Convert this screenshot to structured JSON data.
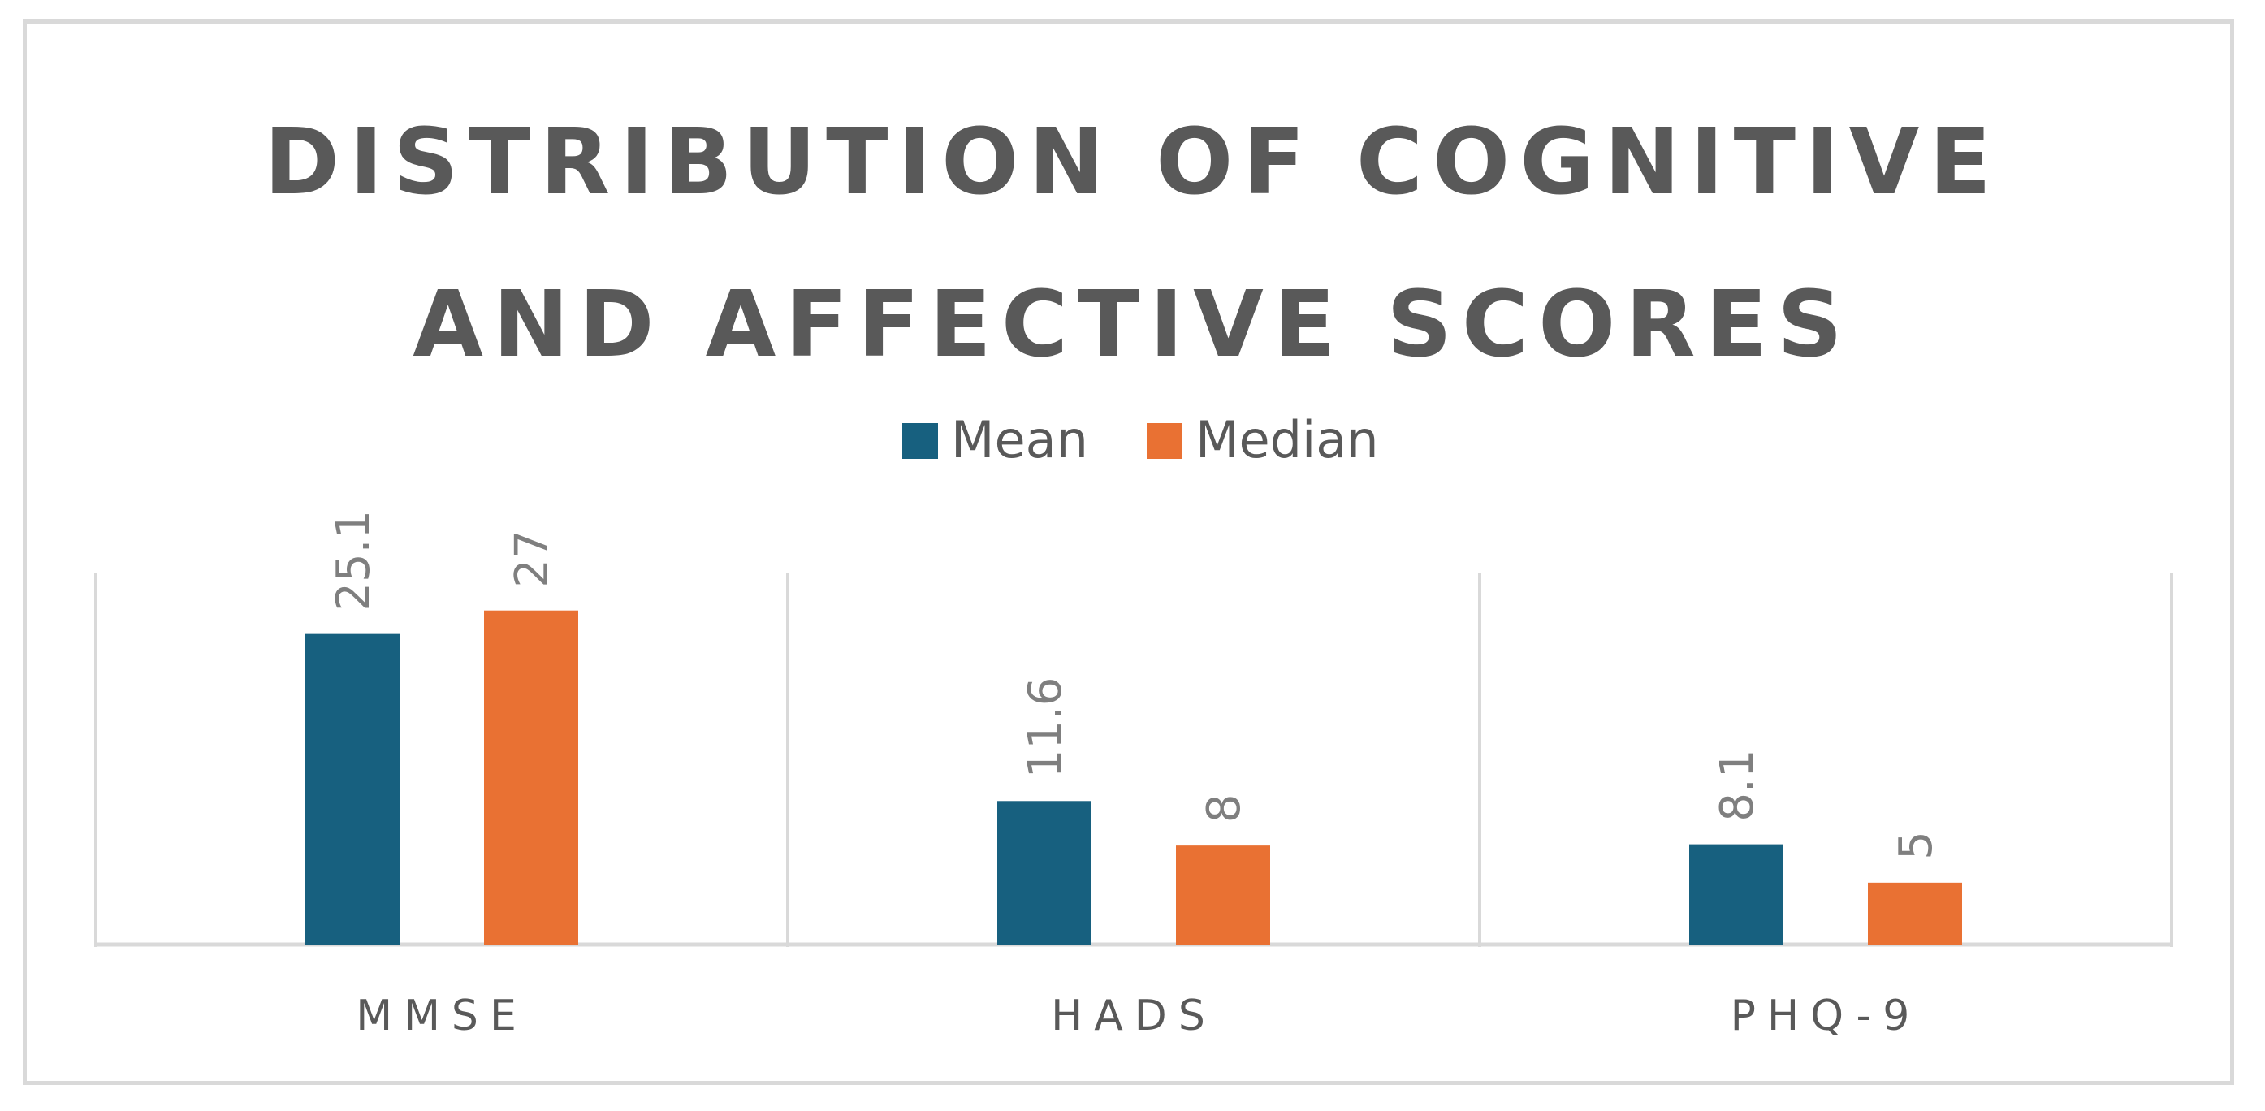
{
  "chart_data": {
    "type": "bar",
    "title_lines": [
      "DISTRIBUTION OF COGNITIVE",
      "AND AFFECTIVE SCORES"
    ],
    "categories": [
      "MMSE",
      "HADS",
      "PHQ-9"
    ],
    "series": [
      {
        "name": "Mean",
        "values": [
          25.1,
          11.6,
          8.1
        ],
        "labels": [
          "25.1",
          "11.6",
          "8.1"
        ],
        "color": "#17607f"
      },
      {
        "name": "Median",
        "values": [
          27,
          8,
          5
        ],
        "labels": [
          "27",
          "8",
          "5"
        ],
        "color": "#e97133"
      }
    ],
    "ylim": [
      0,
      30
    ],
    "grid": false,
    "legend_position": "top",
    "colors": {
      "axis": "#d9d9d9",
      "text": "#595959",
      "data_label": "#7f7f7f"
    }
  }
}
